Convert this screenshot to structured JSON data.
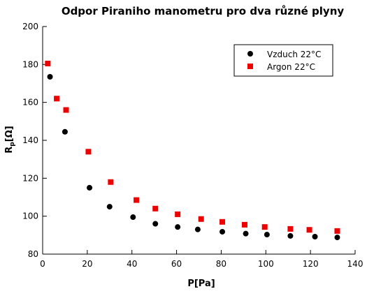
{
  "chart_data": {
    "type": "scatter",
    "title": "Odpor Piraniho manometru pro dva různé plyny",
    "xlabel": "P[Pa]",
    "ylabel_main": "R",
    "ylabel_sub": "p",
    "ylabel_unit": "[Ω]",
    "xlim": [
      0,
      140
    ],
    "ylim": [
      80,
      200
    ],
    "xticks": [
      0,
      20,
      40,
      60,
      80,
      100,
      120,
      140
    ],
    "yticks": [
      80,
      100,
      120,
      140,
      160,
      180,
      200
    ],
    "grid": false,
    "legend_position": "top-right",
    "series": [
      {
        "name": "Vzduch 22°C",
        "color": "#000000",
        "marker": "circle",
        "x": [
          3.3,
          10,
          21,
          30,
          40.5,
          50.5,
          60.5,
          69.5,
          80.5,
          91,
          100.5,
          111,
          122,
          132
        ],
        "y": [
          173.5,
          144.5,
          115,
          105,
          99.5,
          96,
          94.3,
          93,
          91.8,
          90.8,
          90.3,
          89.6,
          89.2,
          88.8
        ]
      },
      {
        "name": "Argon 22°C",
        "color": "#ee0000",
        "marker": "square",
        "x": [
          2.3,
          6.3,
          10.5,
          20.5,
          30.5,
          42,
          50.5,
          60.5,
          71,
          80.5,
          90.5,
          99.5,
          111,
          119.5,
          132
        ],
        "y": [
          180.5,
          162,
          156,
          134,
          118,
          108.5,
          104,
          101,
          98.5,
          97,
          95.5,
          94.3,
          93.3,
          92.8,
          92.2
        ]
      }
    ]
  }
}
